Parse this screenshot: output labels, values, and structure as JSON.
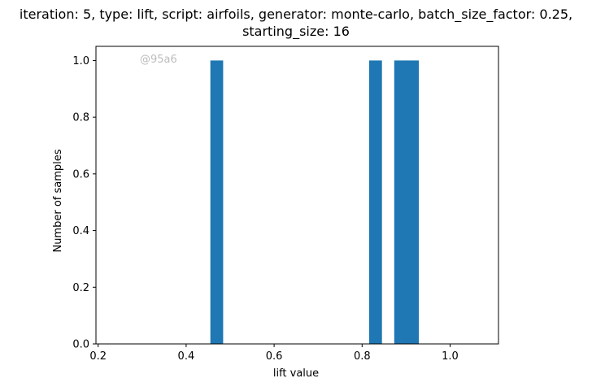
{
  "chart_data": {
    "type": "bar",
    "title_lines": [
      "iteration: 5, type: lift, script: airfoils, generator: monte-carlo, batch_size_factor: 0.25,",
      "starting_size: 16"
    ],
    "xlabel": "lift value",
    "ylabel": "Number of samples",
    "xlim": [
      0.195,
      1.11
    ],
    "ylim": [
      0,
      1.05
    ],
    "xticks": [
      0.2,
      0.4,
      0.6,
      0.8,
      1.0
    ],
    "xtick_labels": [
      "0.2",
      "0.4",
      "0.6",
      "0.8",
      "1.0"
    ],
    "yticks": [
      0.0,
      0.2,
      0.4,
      0.6,
      0.8,
      1.0
    ],
    "ytick_labels": [
      "0.0",
      "0.2",
      "0.4",
      "0.6",
      "0.8",
      "1.0"
    ],
    "bars": [
      {
        "x_start": 0.455,
        "x_end": 0.484,
        "value": 1
      },
      {
        "x_start": 0.816,
        "x_end": 0.845,
        "value": 1
      },
      {
        "x_start": 0.873,
        "x_end": 0.902,
        "value": 1
      },
      {
        "x_start": 0.9,
        "x_end": 0.929,
        "value": 1
      }
    ],
    "bar_color": "#1f77b4",
    "grid": false,
    "watermark": "@95a6"
  }
}
